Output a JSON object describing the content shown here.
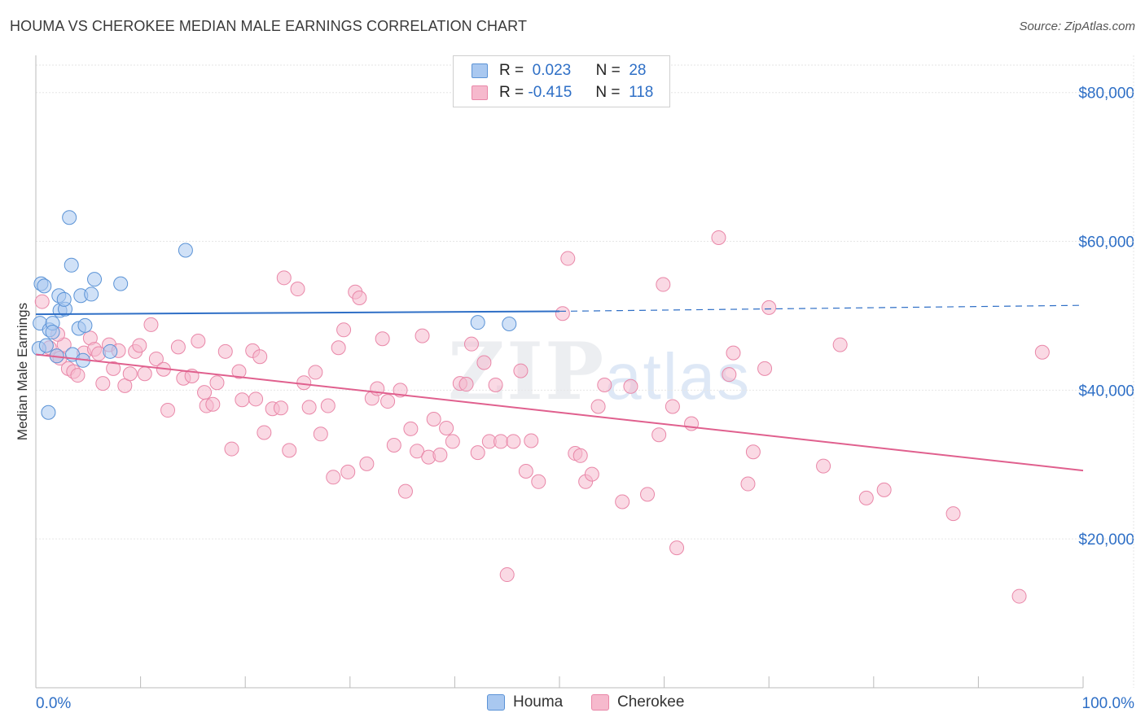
{
  "header": {
    "title": "HOUMA VS CHEROKEE MEDIAN MALE EARNINGS CORRELATION CHART",
    "source": "Source: ZipAtlas.com"
  },
  "watermark": {
    "zip": "ZIP",
    "atlas": "atlas"
  },
  "legend": {
    "rows": [
      {
        "r_label": "R =",
        "r_value": "0.023",
        "n_label": "N =",
        "n_value": "28"
      },
      {
        "r_label": "R =",
        "r_value": "-0.415",
        "n_label": "N =",
        "n_value": "118"
      }
    ]
  },
  "bottom_legend": {
    "houma": "Houma",
    "cherokee": "Cherokee"
  },
  "colors": {
    "houma_fill": "#a9c8f0",
    "houma_stroke": "#5b93d6",
    "houma_line": "#2f6fc6",
    "cherokee_fill": "#f6b9cd",
    "cherokee_stroke": "#e987a8",
    "cherokee_line": "#e0608e",
    "axis_label": "#2e6fc6",
    "grid": "#e6e6e6"
  },
  "chart_data": {
    "type": "scatter",
    "title": "HOUMA VS CHEROKEE MEDIAN MALE EARNINGS CORRELATION CHART",
    "xlabel": "",
    "ylabel": "Median Male Earnings",
    "xlim": [
      0,
      100
    ],
    "ylim": [
      0,
      85000
    ],
    "x_tick_labels": [
      "0.0%",
      "100.0%"
    ],
    "y_ticks": [
      20000,
      40000,
      60000,
      80000
    ],
    "y_tick_labels": [
      "$20,000",
      "$40,000",
      "$60,000",
      "$80,000"
    ],
    "series": [
      {
        "name": "Houma",
        "r": 0.023,
        "n": 28,
        "trend": {
          "x0": 0,
          "y0": 50200,
          "x1": 50,
          "y1": 50600,
          "dash_x1": 100,
          "dash_y1": 51400
        },
        "points": [
          [
            0.5,
            54300
          ],
          [
            0.8,
            54000
          ],
          [
            0.4,
            49000
          ],
          [
            0.3,
            45600
          ],
          [
            1.3,
            48100
          ],
          [
            1.6,
            49000
          ],
          [
            1.6,
            47800
          ],
          [
            1.2,
            37000
          ],
          [
            2.2,
            52700
          ],
          [
            2.3,
            50700
          ],
          [
            2.8,
            50900
          ],
          [
            2.7,
            52200
          ],
          [
            3.4,
            56800
          ],
          [
            3.2,
            63200
          ],
          [
            3.5,
            44800
          ],
          [
            4.1,
            48300
          ],
          [
            4.3,
            52700
          ],
          [
            4.5,
            44000
          ],
          [
            4.7,
            48700
          ],
          [
            5.3,
            52900
          ],
          [
            5.6,
            54900
          ],
          [
            7.1,
            45200
          ],
          [
            8.1,
            54300
          ],
          [
            14.3,
            58800
          ],
          [
            42.2,
            49100
          ],
          [
            45.2,
            48900
          ],
          [
            1.0,
            46000
          ],
          [
            2.0,
            44600
          ]
        ]
      },
      {
        "name": "Cherokee",
        "r": -0.415,
        "n": 118,
        "trend": {
          "x0": 0,
          "y0": 44800,
          "x1": 100,
          "y1": 29200
        },
        "points": [
          [
            0.6,
            51900
          ],
          [
            1.3,
            45700
          ],
          [
            2.0,
            44600
          ],
          [
            2.3,
            44300
          ],
          [
            2.7,
            46100
          ],
          [
            3.1,
            42900
          ],
          [
            3.6,
            42500
          ],
          [
            4.0,
            42000
          ],
          [
            4.6,
            45000
          ],
          [
            5.2,
            47000
          ],
          [
            5.6,
            45500
          ],
          [
            6.0,
            44900
          ],
          [
            6.4,
            40900
          ],
          [
            7.0,
            46100
          ],
          [
            7.4,
            42900
          ],
          [
            7.9,
            45300
          ],
          [
            8.5,
            40600
          ],
          [
            9.0,
            42200
          ],
          [
            9.5,
            45200
          ],
          [
            9.9,
            46000
          ],
          [
            10.4,
            42200
          ],
          [
            11.0,
            48800
          ],
          [
            11.5,
            44200
          ],
          [
            12.2,
            42800
          ],
          [
            12.6,
            37300
          ],
          [
            13.6,
            45800
          ],
          [
            14.1,
            41600
          ],
          [
            14.9,
            41900
          ],
          [
            15.5,
            46600
          ],
          [
            16.1,
            39700
          ],
          [
            16.3,
            37900
          ],
          [
            16.9,
            38100
          ],
          [
            17.3,
            41000
          ],
          [
            18.1,
            45200
          ],
          [
            18.7,
            32100
          ],
          [
            19.4,
            42500
          ],
          [
            19.7,
            38700
          ],
          [
            20.7,
            45300
          ],
          [
            21.0,
            38800
          ],
          [
            21.4,
            44500
          ],
          [
            21.8,
            34300
          ],
          [
            22.6,
            37500
          ],
          [
            23.4,
            37600
          ],
          [
            23.7,
            55100
          ],
          [
            24.2,
            31900
          ],
          [
            25.0,
            53600
          ],
          [
            25.6,
            41000
          ],
          [
            26.1,
            37700
          ],
          [
            26.7,
            42400
          ],
          [
            27.2,
            34100
          ],
          [
            27.9,
            37900
          ],
          [
            28.4,
            28300
          ],
          [
            28.9,
            45700
          ],
          [
            29.4,
            48100
          ],
          [
            29.8,
            29000
          ],
          [
            30.5,
            53200
          ],
          [
            30.9,
            52400
          ],
          [
            31.6,
            30100
          ],
          [
            32.1,
            38900
          ],
          [
            32.6,
            40200
          ],
          [
            33.1,
            46900
          ],
          [
            33.6,
            38500
          ],
          [
            34.2,
            32600
          ],
          [
            34.8,
            40000
          ],
          [
            35.3,
            26400
          ],
          [
            35.8,
            34800
          ],
          [
            36.4,
            31800
          ],
          [
            36.9,
            47300
          ],
          [
            37.5,
            31000
          ],
          [
            38.0,
            36100
          ],
          [
            38.6,
            31300
          ],
          [
            39.2,
            34900
          ],
          [
            39.8,
            33100
          ],
          [
            40.5,
            40900
          ],
          [
            41.1,
            40800
          ],
          [
            41.6,
            46200
          ],
          [
            42.2,
            31600
          ],
          [
            42.8,
            43700
          ],
          [
            43.3,
            33100
          ],
          [
            43.9,
            40700
          ],
          [
            44.4,
            33100
          ],
          [
            45.0,
            15200
          ],
          [
            45.6,
            33100
          ],
          [
            46.3,
            42600
          ],
          [
            46.8,
            29100
          ],
          [
            47.3,
            33200
          ],
          [
            48.0,
            27700
          ],
          [
            50.3,
            50300
          ],
          [
            50.8,
            57700
          ],
          [
            51.5,
            31500
          ],
          [
            52.0,
            31200
          ],
          [
            52.5,
            27700
          ],
          [
            53.1,
            28700
          ],
          [
            53.7,
            37800
          ],
          [
            54.3,
            40700
          ],
          [
            56.0,
            25000
          ],
          [
            56.8,
            40500
          ],
          [
            58.4,
            26000
          ],
          [
            59.5,
            34000
          ],
          [
            59.9,
            54200
          ],
          [
            60.8,
            37800
          ],
          [
            61.2,
            18800
          ],
          [
            62.6,
            35500
          ],
          [
            65.2,
            60500
          ],
          [
            66.2,
            42100
          ],
          [
            66.6,
            45000
          ],
          [
            68.0,
            27400
          ],
          [
            68.5,
            31700
          ],
          [
            69.6,
            42900
          ],
          [
            70.0,
            51100
          ],
          [
            75.2,
            29800
          ],
          [
            76.8,
            46100
          ],
          [
            79.3,
            25500
          ],
          [
            81.0,
            26600
          ],
          [
            87.6,
            23400
          ],
          [
            93.9,
            12300
          ],
          [
            96.1,
            45100
          ],
          [
            2.1,
            47500
          ]
        ]
      }
    ]
  }
}
